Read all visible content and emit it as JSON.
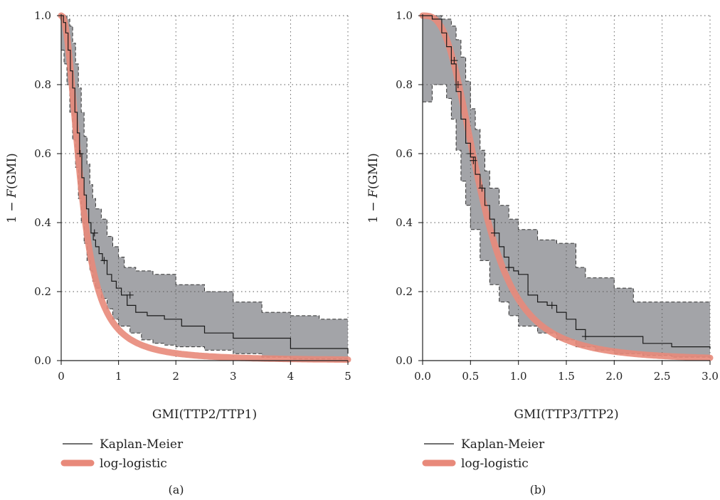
{
  "chart_data": [
    {
      "type": "line",
      "panel_label": "(a)",
      "xlabel": "GMI(TTP2/TTP1)",
      "ylabel_prefix": "1 − ",
      "ylabel_italic": "F",
      "ylabel_suffix": "(GMI)",
      "xlim": [
        0,
        5
      ],
      "ylim": [
        0,
        1.0
      ],
      "x_ticks": [
        0,
        1,
        2,
        3,
        4,
        5
      ],
      "x_tick_labels": [
        "0",
        "1",
        "2",
        "3",
        "4",
        "5"
      ],
      "y_ticks": [
        0.0,
        0.2,
        0.4,
        0.6,
        0.8,
        1.0
      ],
      "y_tick_labels": [
        "0.0",
        "0.2",
        "0.4",
        "0.6",
        "0.8",
        "1.0"
      ],
      "grid": true,
      "legend_position": "bottom-left",
      "series": [
        {
          "name": "Kaplan-Meier",
          "style": "step",
          "color": "#1a1a1a",
          "x": [
            0,
            0.04,
            0.08,
            0.12,
            0.16,
            0.2,
            0.24,
            0.28,
            0.32,
            0.36,
            0.4,
            0.44,
            0.48,
            0.52,
            0.56,
            0.6,
            0.66,
            0.72,
            0.8,
            0.88,
            0.96,
            1.05,
            1.15,
            1.3,
            1.5,
            1.8,
            2.1,
            2.5,
            3.0,
            4.0,
            5.0
          ],
          "y": [
            1.0,
            0.98,
            0.95,
            0.9,
            0.84,
            0.79,
            0.72,
            0.66,
            0.6,
            0.53,
            0.48,
            0.44,
            0.4,
            0.37,
            0.35,
            0.33,
            0.31,
            0.29,
            0.25,
            0.23,
            0.21,
            0.19,
            0.16,
            0.14,
            0.13,
            0.12,
            0.1,
            0.08,
            0.065,
            0.035,
            0.02
          ],
          "censor_x": [
            0.33,
            0.58,
            0.75,
            1.2
          ],
          "censor_y": [
            0.6,
            0.37,
            0.29,
            0.19
          ]
        },
        {
          "name": "log-logistic",
          "style": "smooth",
          "color": "#e8897a",
          "alpha": 0.35,
          "beta": 2.2
        }
      ],
      "band": {
        "color": "#a3a4a8",
        "upper_x": [
          0,
          0.05,
          0.1,
          0.15,
          0.2,
          0.25,
          0.3,
          0.35,
          0.4,
          0.45,
          0.5,
          0.55,
          0.6,
          0.7,
          0.8,
          0.9,
          1.0,
          1.1,
          1.3,
          1.6,
          2.0,
          2.5,
          3.0,
          3.5,
          4.0,
          4.5,
          5.0
        ],
        "upper_y": [
          1.0,
          1.0,
          0.99,
          0.97,
          0.92,
          0.86,
          0.79,
          0.72,
          0.65,
          0.57,
          0.51,
          0.47,
          0.44,
          0.41,
          0.36,
          0.33,
          0.3,
          0.27,
          0.26,
          0.25,
          0.22,
          0.2,
          0.17,
          0.14,
          0.13,
          0.12,
          0.12
        ],
        "lower_x": [
          0,
          0.05,
          0.1,
          0.15,
          0.2,
          0.25,
          0.3,
          0.35,
          0.4,
          0.45,
          0.5,
          0.55,
          0.6,
          0.7,
          0.8,
          0.9,
          1.0,
          1.2,
          1.4,
          1.6,
          1.8,
          2.0,
          2.5,
          3.0,
          3.5,
          4.0,
          5.0
        ],
        "lower_y": [
          0.9,
          0.86,
          0.8,
          0.72,
          0.64,
          0.56,
          0.47,
          0.4,
          0.34,
          0.29,
          0.26,
          0.23,
          0.21,
          0.18,
          0.15,
          0.12,
          0.1,
          0.08,
          0.06,
          0.05,
          0.045,
          0.04,
          0.03,
          0.02,
          0.01,
          0.005,
          0.003
        ]
      }
    },
    {
      "type": "line",
      "panel_label": "(b)",
      "xlabel": "GMI(TTP3/TTP2)",
      "ylabel_prefix": "1 − ",
      "ylabel_italic": "F",
      "ylabel_suffix": "(GMI)",
      "xlim": [
        0,
        3.0
      ],
      "ylim": [
        0,
        1.0
      ],
      "x_ticks": [
        0,
        0.5,
        1.0,
        1.5,
        2.0,
        2.5,
        3.0
      ],
      "x_tick_labels": [
        "0.0",
        "0.5",
        "1.0",
        "1.5",
        "2.0",
        "2.5",
        "3.0"
      ],
      "y_ticks": [
        0.0,
        0.2,
        0.4,
        0.6,
        0.8,
        1.0
      ],
      "y_tick_labels": [
        "0.0",
        "0.2",
        "0.4",
        "0.6",
        "0.8",
        "1.0"
      ],
      "grid": true,
      "legend_position": "bottom-left",
      "series": [
        {
          "name": "Kaplan-Meier",
          "style": "step",
          "color": "#1a1a1a",
          "x": [
            0,
            0.1,
            0.2,
            0.25,
            0.3,
            0.35,
            0.4,
            0.45,
            0.5,
            0.55,
            0.6,
            0.65,
            0.7,
            0.75,
            0.8,
            0.85,
            0.9,
            0.95,
            1.0,
            1.1,
            1.2,
            1.3,
            1.4,
            1.5,
            1.6,
            1.7,
            2.0,
            2.3,
            2.6,
            3.0
          ],
          "y": [
            1.0,
            0.99,
            0.95,
            0.91,
            0.86,
            0.78,
            0.7,
            0.63,
            0.59,
            0.54,
            0.5,
            0.45,
            0.41,
            0.37,
            0.33,
            0.3,
            0.27,
            0.26,
            0.25,
            0.19,
            0.17,
            0.16,
            0.14,
            0.12,
            0.09,
            0.07,
            0.07,
            0.05,
            0.04,
            0.035
          ],
          "censor_x": [
            0.33,
            0.37,
            0.5,
            0.53,
            0.62,
            0.75,
            0.9,
            1.35,
            1.7
          ],
          "censor_y": [
            0.87,
            0.8,
            0.6,
            0.58,
            0.5,
            0.37,
            0.27,
            0.16,
            0.07
          ]
        },
        {
          "name": "log-logistic",
          "style": "smooth",
          "color": "#e8897a",
          "alpha": 0.6,
          "beta": 3.0
        }
      ],
      "band": {
        "color": "#a3a4a8",
        "upper_x": [
          0,
          0.1,
          0.2,
          0.3,
          0.35,
          0.4,
          0.45,
          0.5,
          0.55,
          0.6,
          0.65,
          0.7,
          0.8,
          0.9,
          1.0,
          1.2,
          1.4,
          1.6,
          1.7,
          2.0,
          2.2,
          2.5,
          3.0
        ],
        "upper_y": [
          1.0,
          1.0,
          0.99,
          0.97,
          0.93,
          0.88,
          0.81,
          0.73,
          0.67,
          0.61,
          0.55,
          0.5,
          0.45,
          0.41,
          0.38,
          0.35,
          0.34,
          0.27,
          0.24,
          0.21,
          0.17,
          0.17,
          0.17
        ],
        "lower_x": [
          0,
          0.05,
          0.1,
          0.2,
          0.25,
          0.3,
          0.35,
          0.4,
          0.45,
          0.5,
          0.6,
          0.7,
          0.8,
          0.9,
          1.0,
          1.2,
          1.4,
          1.6,
          1.8,
          2.0,
          2.3,
          2.6,
          3.0
        ],
        "lower_y": [
          0.75,
          0.75,
          0.8,
          0.8,
          0.76,
          0.7,
          0.61,
          0.52,
          0.45,
          0.38,
          0.29,
          0.22,
          0.17,
          0.13,
          0.1,
          0.08,
          0.06,
          0.04,
          0.03,
          0.02,
          0.015,
          0.01,
          0.005
        ]
      }
    }
  ]
}
